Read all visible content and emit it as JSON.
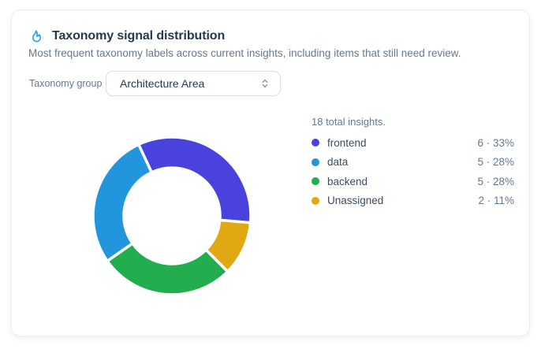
{
  "header": {
    "title": "Taxonomy signal distribution",
    "subtitle": "Most frequent taxonomy labels across current insights, including items that still need review.",
    "icon": "flame-icon",
    "icon_color": "#2D9CEA"
  },
  "controls": {
    "group_label": "Taxonomy group",
    "group_value": "Architecture Area",
    "chevron_icon": "select-updown-chevron-icon",
    "chevron_color": "#8A99AC"
  },
  "chart_data": {
    "type": "pie",
    "title": "Taxonomy signal distribution",
    "donut": true,
    "total": 18,
    "total_label": "18 total insights.",
    "legend_position": "right",
    "start_angle_deg": -25,
    "direction": "clockwise",
    "clockwise_order": [
      "frontend",
      "Unassigned",
      "backend",
      "data"
    ],
    "outer_radius": 100,
    "inner_radius": 61,
    "gap_stroke_color": "#ffffff",
    "items": [
      {
        "label": "frontend",
        "value": 6,
        "percent": 33,
        "value_text": "6 · 33%",
        "color": "#4A42DD"
      },
      {
        "label": "data",
        "value": 5,
        "percent": 28,
        "value_text": "5 · 28%",
        "color": "#2196DD"
      },
      {
        "label": "backend",
        "value": 5,
        "percent": 28,
        "value_text": "5 · 28%",
        "color": "#22AE4E"
      },
      {
        "label": "Unassigned",
        "value": 2,
        "percent": 11,
        "value_text": "2 · 11%",
        "color": "#E0A812"
      }
    ]
  }
}
